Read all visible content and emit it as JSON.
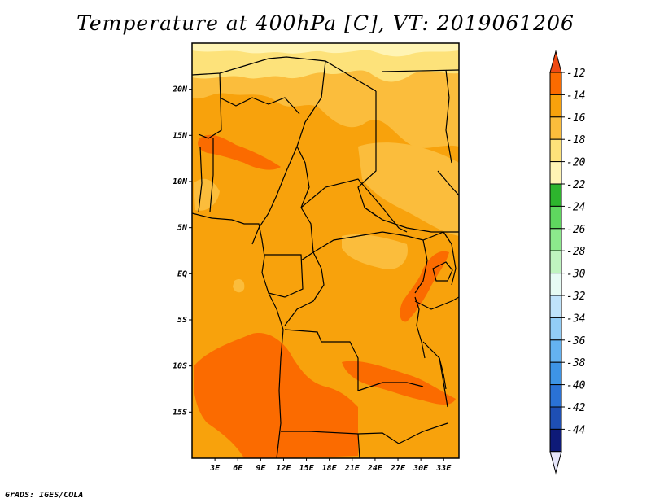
{
  "title": "Temperature at 400hPa [C], VT: 2019061206",
  "credit": "GrADS: IGES/COLA",
  "map": {
    "lon_range": [
      0,
      35
    ],
    "lat_range": [
      -20,
      25
    ],
    "lat_ticks": [
      {
        "value": 20,
        "label": "20N"
      },
      {
        "value": 15,
        "label": "15N"
      },
      {
        "value": 10,
        "label": "10N"
      },
      {
        "value": 5,
        "label": "5N"
      },
      {
        "value": 0,
        "label": "EQ"
      },
      {
        "value": -5,
        "label": "5S"
      },
      {
        "value": -10,
        "label": "10S"
      },
      {
        "value": -15,
        "label": "15S"
      }
    ],
    "lon_ticks": [
      {
        "value": 3,
        "label": "3E"
      },
      {
        "value": 6,
        "label": "6E"
      },
      {
        "value": 9,
        "label": "9E"
      },
      {
        "value": 12,
        "label": "12E"
      },
      {
        "value": 15,
        "label": "15E"
      },
      {
        "value": 18,
        "label": "18E"
      },
      {
        "value": 21,
        "label": "21E"
      },
      {
        "value": 24,
        "label": "24E"
      },
      {
        "value": 27,
        "label": "27E"
      },
      {
        "value": 30,
        "label": "30E"
      },
      {
        "value": 33,
        "label": "33E"
      }
    ],
    "colors": {
      "band_12_14": "#fb6b00",
      "band_14_16": "#f8a20c",
      "band_16_18": "#fbbd3c",
      "band_18_20": "#fde27a",
      "band_20_22": "#fff4b4",
      "border": "#000000"
    }
  },
  "colorbar": {
    "labels": [
      "-12",
      "-14",
      "-16",
      "-18",
      "-20",
      "-22",
      "-24",
      "-26",
      "-28",
      "-30",
      "-32",
      "-34",
      "-36",
      "-38",
      "-40",
      "-42",
      "-44"
    ],
    "top_triangle_color": "#f04a14",
    "bottom_triangle_color": "#e6e6fa",
    "bins": [
      "#fb6b00",
      "#f8a20c",
      "#fbbd3c",
      "#fde27a",
      "#fff4b4",
      "#2db52d",
      "#5fd75f",
      "#8ce98c",
      "#bff4bf",
      "#e6fbf4",
      "#bfe3fb",
      "#92cdf7",
      "#64b2f1",
      "#3d94e6",
      "#2a72d6",
      "#1e4fb4",
      "#0e1a78"
    ]
  }
}
